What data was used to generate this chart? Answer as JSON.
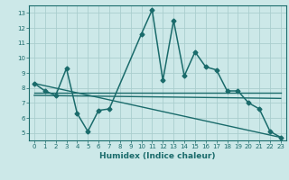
{
  "xlabel": "Humidex (Indice chaleur)",
  "bg_color": "#cce8e8",
  "grid_color": "#aacece",
  "line_color": "#1a6b6b",
  "xlim": [
    -0.5,
    23.5
  ],
  "ylim": [
    4.5,
    13.5
  ],
  "xticks": [
    0,
    1,
    2,
    3,
    4,
    5,
    6,
    7,
    8,
    9,
    10,
    11,
    12,
    13,
    14,
    15,
    16,
    17,
    18,
    19,
    20,
    21,
    22,
    23
  ],
  "yticks": [
    5,
    6,
    7,
    8,
    9,
    10,
    11,
    12,
    13
  ],
  "series": [
    {
      "x": [
        0,
        1,
        2,
        3,
        4,
        5,
        6,
        7,
        10,
        11,
        12,
        13,
        14,
        15,
        16,
        17,
        18,
        19,
        20,
        21,
        22,
        23
      ],
      "y": [
        8.3,
        7.8,
        7.5,
        9.3,
        6.3,
        5.1,
        6.5,
        6.6,
        11.6,
        13.2,
        8.5,
        12.5,
        8.8,
        10.4,
        9.4,
        9.2,
        7.8,
        7.8,
        7.0,
        6.6,
        5.1,
        4.7
      ],
      "marker": "D",
      "markersize": 2.5,
      "linewidth": 1.1
    },
    {
      "x": [
        0,
        23
      ],
      "y": [
        7.7,
        7.7
      ],
      "marker": null,
      "linewidth": 1.0
    },
    {
      "x": [
        0,
        23
      ],
      "y": [
        7.5,
        7.3
      ],
      "marker": null,
      "linewidth": 1.0
    },
    {
      "x": [
        0,
        23
      ],
      "y": [
        8.3,
        4.7
      ],
      "marker": null,
      "linewidth": 1.0
    }
  ]
}
